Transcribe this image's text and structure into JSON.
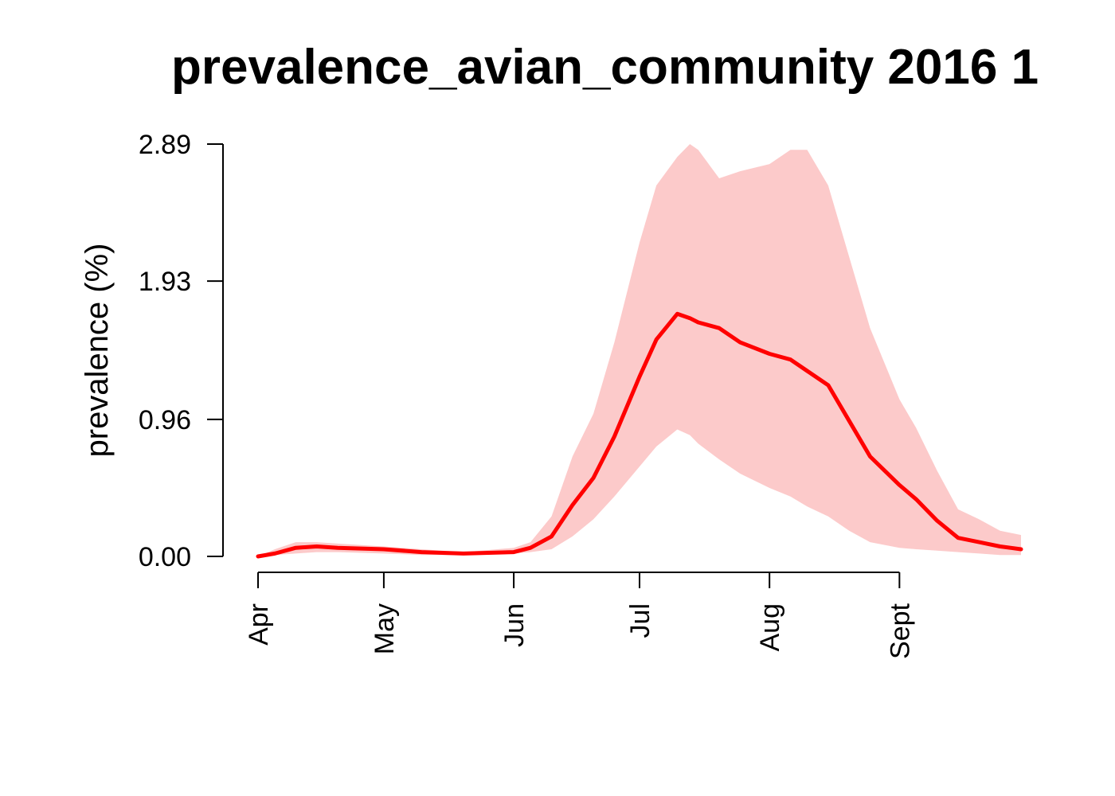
{
  "chart_data": {
    "type": "line",
    "title": "prevalence_avian_community 2016 1",
    "xlabel": "",
    "ylabel": "prevalence (%)",
    "x_ticks": [
      "Apr",
      "May",
      "Jun",
      "Jul",
      "Aug",
      "Sept"
    ],
    "y_ticks": [
      "0.00",
      "0.96",
      "1.93",
      "2.89"
    ],
    "ylim": [
      0,
      2.89
    ],
    "xlim": [
      "Apr 1",
      "Sept 30"
    ],
    "grid": false,
    "colors": {
      "line": "#ff0000",
      "band": "#fccaca"
    },
    "series": [
      {
        "x": [
          "Apr 1",
          "Apr 5",
          "Apr 10",
          "Apr 15",
          "Apr 20",
          "May 1",
          "May 10",
          "May 20",
          "Jun 1",
          "Jun 5",
          "Jun 10",
          "Jun 15",
          "Jun 20",
          "Jun 25",
          "Jul 1",
          "Jul 5",
          "Jul 10",
          "Jul 13",
          "Jul 15",
          "Jul 20",
          "Jul 25",
          "Aug 1",
          "Aug 6",
          "Aug 10",
          "Aug 15",
          "Aug 20",
          "Aug 25",
          "Sept 1",
          "Sept 5",
          "Sept 10",
          "Sept 15",
          "Sept 20",
          "Sept 25",
          "Sept 30"
        ],
        "mean": [
          0.0,
          0.02,
          0.06,
          0.07,
          0.06,
          0.05,
          0.03,
          0.02,
          0.03,
          0.06,
          0.14,
          0.36,
          0.55,
          0.84,
          1.26,
          1.52,
          1.7,
          1.67,
          1.64,
          1.6,
          1.5,
          1.42,
          1.38,
          1.3,
          1.2,
          0.95,
          0.7,
          0.5,
          0.4,
          0.25,
          0.13,
          0.1,
          0.07,
          0.05
        ],
        "lower": [
          0.0,
          0.01,
          0.02,
          0.03,
          0.03,
          0.02,
          0.01,
          0.01,
          0.02,
          0.03,
          0.05,
          0.14,
          0.26,
          0.42,
          0.63,
          0.77,
          0.89,
          0.85,
          0.79,
          0.68,
          0.58,
          0.48,
          0.42,
          0.35,
          0.28,
          0.18,
          0.1,
          0.06,
          0.05,
          0.04,
          0.03,
          0.02,
          0.01,
          0.01
        ],
        "upper": [
          0.0,
          0.05,
          0.1,
          0.1,
          0.09,
          0.07,
          0.05,
          0.03,
          0.06,
          0.1,
          0.28,
          0.7,
          1.0,
          1.5,
          2.2,
          2.6,
          2.8,
          2.89,
          2.85,
          2.65,
          2.7,
          2.75,
          2.85,
          2.85,
          2.6,
          2.1,
          1.6,
          1.1,
          0.9,
          0.6,
          0.33,
          0.26,
          0.18,
          0.15
        ]
      }
    ]
  }
}
